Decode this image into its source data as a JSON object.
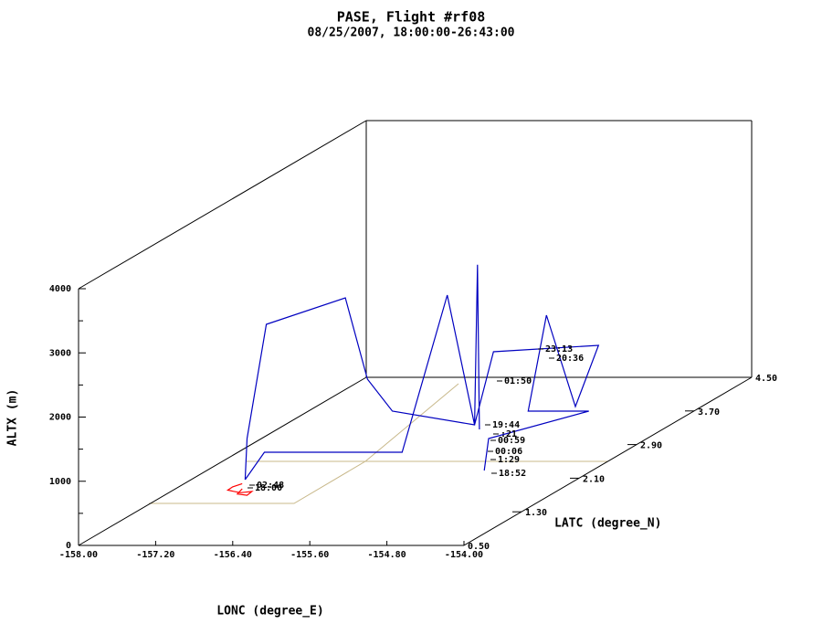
{
  "chart_data": {
    "type": "track3d",
    "title": "PASE, Flight #rf08",
    "subtitle": "08/25/2007, 18:00:00-26:43:00",
    "x_label": "LONC (degree_E)",
    "y_label": "LATC (degree_N)",
    "z_label": "ALTX (m)",
    "xlim": [
      -158,
      -154
    ],
    "ylim": [
      0.5,
      4.5
    ],
    "zlim": [
      0,
      4000
    ],
    "xticks": [
      {
        "value": -158,
        "label": "-158.00"
      },
      {
        "value": -157.2,
        "label": "-157.20"
      },
      {
        "value": -156.4,
        "label": "-156.40"
      },
      {
        "value": -155.6,
        "label": "-155.60"
      },
      {
        "value": -154.8,
        "label": "-154.80"
      },
      {
        "value": -154,
        "label": "-154.00"
      }
    ],
    "yticks": [
      {
        "value": 0.5,
        "label": "0.50"
      },
      {
        "value": 1.3,
        "label": "1.30"
      },
      {
        "value": 2.1,
        "label": "2.10"
      },
      {
        "value": 2.9,
        "label": "2.90"
      },
      {
        "value": 3.7,
        "label": "3.70"
      },
      {
        "value": 4.5,
        "label": "4.50"
      }
    ],
    "zticks": [
      0,
      1000,
      2000,
      3000,
      4000
    ],
    "series": [
      {
        "color": "#ff0000",
        "x": [
          -156.6,
          -156.7,
          -156.75,
          -156.62,
          -156.5,
          -156.55,
          -156.65,
          -156.6
        ],
        "y": [
          0.9,
          0.9,
          0.9,
          0.9,
          0.9,
          0.9,
          0.9,
          0.9
        ],
        "z": [
          700,
          650,
          600,
          560,
          580,
          520,
          540,
          620
        ]
      },
      {
        "color": "#0000c0",
        "x": [
          -156.57,
          -156.55,
          -156.35,
          -155.53,
          -155.3,
          -155.49,
          -154.86,
          -154.83,
          -154.81,
          null,
          -156.57,
          -156.37,
          -154.94,
          -154.92,
          -154.86,
          -155.56,
          -154.47,
          -154.71,
          -155.01,
          -155.2,
          -154.57,
          -155.61,
          -154.76
        ],
        "y": [
          0.9,
          0.9,
          0.9,
          0.9,
          0.9,
          1.5,
          1.8,
          1.8,
          1.8,
          null,
          0.9,
          0.9,
          0.9,
          1.5,
          1.8,
          3.0,
          3.0,
          3.0,
          3.0,
          3.0,
          3.0,
          3.0,
          1.8
        ],
        "z": [
          763,
          1404,
          3183,
          3596,
          2329,
          1438,
          1028,
          3522,
          957,
          null,
          763,
          1190,
          1190,
          3246,
          1028,
          1381,
          1480,
          527,
          1950,
          455,
          455,
          28,
          316
        ]
      }
    ],
    "annotations": [
      "02:48",
      "18:00",
      "01:50",
      "23:13",
      "20:36",
      "19:44",
      ":21",
      "00:59",
      "00:06",
      "1:29",
      "18:52"
    ]
  }
}
